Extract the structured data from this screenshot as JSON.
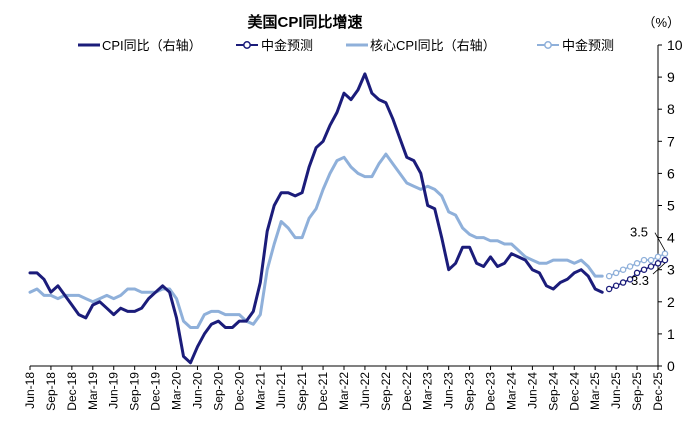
{
  "chart_data": {
    "type": "line",
    "title": "美国CPI同比增速",
    "unit": "（%）",
    "y_axis": {
      "side": "right",
      "range": [
        0,
        10
      ],
      "ticks": [
        0,
        1,
        2,
        3,
        4,
        5,
        6,
        7,
        8,
        9,
        10
      ]
    },
    "x_start": "2018-06",
    "x_end": "2025-12",
    "x_tick_labels": [
      "Jun-18",
      "Sep-18",
      "Dec-18",
      "Mar-19",
      "Jun-19",
      "Sep-19",
      "Dec-19",
      "Mar-20",
      "Jun-20",
      "Sep-20",
      "Dec-20",
      "Mar-21",
      "Jun-21",
      "Sep-21",
      "Dec-21",
      "Mar-22",
      "Jun-22",
      "Sep-22",
      "Dec-22",
      "Mar-23",
      "Jun-23",
      "Sep-23",
      "Dec-23",
      "Mar-24",
      "Jun-24",
      "Sep-24",
      "Dec-24",
      "Mar-25",
      "Jun-25",
      "Sep-25",
      "Dec-25"
    ],
    "colors": {
      "cpi": "#1b1c7a",
      "core": "#8fb0da"
    },
    "series": [
      {
        "name": "CPI同比（右轴）",
        "start": "2018-06",
        "style": "solid-dark",
        "values": [
          2.9,
          2.9,
          2.7,
          2.3,
          2.5,
          2.2,
          1.9,
          1.6,
          1.5,
          1.9,
          2.0,
          1.8,
          1.6,
          1.8,
          1.7,
          1.7,
          1.8,
          2.1,
          2.3,
          2.5,
          2.3,
          1.5,
          0.3,
          0.1,
          0.6,
          1.0,
          1.3,
          1.4,
          1.2,
          1.2,
          1.4,
          1.4,
          1.7,
          2.6,
          4.2,
          5.0,
          5.4,
          5.4,
          5.3,
          5.4,
          6.2,
          6.8,
          7.0,
          7.5,
          7.9,
          8.5,
          8.3,
          8.6,
          9.1,
          8.5,
          8.3,
          8.2,
          7.7,
          7.1,
          6.5,
          6.4,
          6.0,
          5.0,
          4.9,
          4.0,
          3.0,
          3.2,
          3.7,
          3.7,
          3.2,
          3.1,
          3.4,
          3.1,
          3.2,
          3.5,
          3.4,
          3.3,
          3.0,
          2.9,
          2.5,
          2.4,
          2.6,
          2.7,
          2.9,
          3.0,
          2.8,
          2.4,
          2.3
        ]
      },
      {
        "name": "中金预测",
        "start": "2025-05",
        "style": "dark-markers",
        "values": [
          2.4,
          2.5,
          2.6,
          2.7,
          2.9,
          3.0,
          3.1,
          3.2,
          3.3
        ]
      },
      {
        "name": "核心CPI同比（右轴）",
        "start": "2018-06",
        "style": "solid-light",
        "values": [
          2.3,
          2.4,
          2.2,
          2.2,
          2.1,
          2.2,
          2.2,
          2.2,
          2.1,
          2.0,
          2.1,
          2.2,
          2.1,
          2.2,
          2.4,
          2.4,
          2.3,
          2.3,
          2.3,
          2.4,
          2.4,
          2.1,
          1.4,
          1.2,
          1.2,
          1.6,
          1.7,
          1.7,
          1.6,
          1.6,
          1.6,
          1.4,
          1.3,
          1.6,
          3.0,
          3.8,
          4.5,
          4.3,
          4.0,
          4.0,
          4.6,
          4.9,
          5.5,
          6.0,
          6.4,
          6.5,
          6.2,
          6.0,
          5.9,
          5.9,
          6.3,
          6.6,
          6.3,
          6.0,
          5.7,
          5.6,
          5.5,
          5.6,
          5.5,
          5.3,
          4.8,
          4.7,
          4.3,
          4.1,
          4.0,
          4.0,
          3.9,
          3.9,
          3.8,
          3.8,
          3.6,
          3.4,
          3.3,
          3.2,
          3.2,
          3.3,
          3.3,
          3.3,
          3.2,
          3.3,
          3.1,
          2.8,
          2.8
        ]
      },
      {
        "name": "中金预测",
        "start": "2025-05",
        "style": "light-markers",
        "values": [
          2.8,
          2.9,
          3.0,
          3.1,
          3.2,
          3.3,
          3.3,
          3.4,
          3.5
        ]
      }
    ],
    "annotations": [
      {
        "text": "3.5",
        "series": 3
      },
      {
        "text": "3.3",
        "series": 1
      }
    ]
  }
}
